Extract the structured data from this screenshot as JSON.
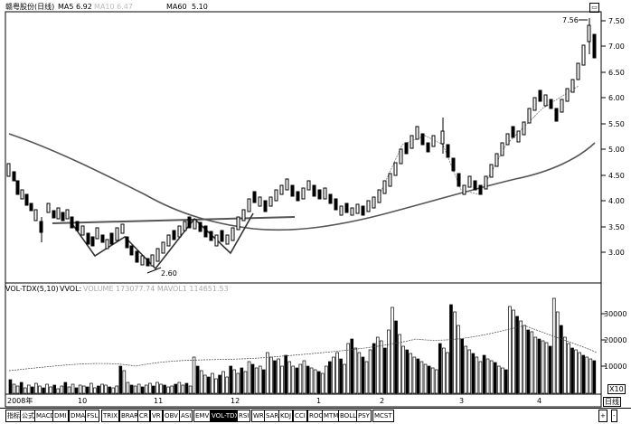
{
  "header": {
    "stock_label": "赣粤股份(日线)",
    "ma5_label": "MA5",
    "ma5_value": "6.92",
    "ma_faded": "MA10 6.47",
    "ma60_label": "MA60",
    "ma60_value": "5.10"
  },
  "price_axis": [
    "7.50",
    "7.00",
    "6.50",
    "6.00",
    "5.50",
    "5.00",
    "4.50",
    "4.00",
    "3.50",
    "3.00"
  ],
  "annotations": {
    "low": "2.60",
    "high": "7.56"
  },
  "volume_header": {
    "indicator": "VOL-TDX(5,10)",
    "vol_label": "VVOL:",
    "rest": "VOLUME 173077.74 MAVOL1 114651.53"
  },
  "volume_axis": [
    "30000",
    "20000",
    "10000"
  ],
  "volume_unit": "X10",
  "date_axis": [
    "2008年",
    "10",
    "11",
    "12",
    "1",
    "2",
    "3",
    "4"
  ],
  "period_label": "日线",
  "tabs": [
    "指标",
    "公式",
    "MACD",
    "DMI",
    "DMA",
    "FSL",
    "TRIX",
    "BRAR",
    "CR",
    "VR",
    "OBV",
    "ASI",
    "EMV",
    "VOL-TDX",
    "RSI",
    "WR",
    "SAR",
    "KDJ",
    "CCI",
    "ROC",
    "MTM",
    "BOLL",
    "PSY",
    "MCST"
  ],
  "nav_buttons": [
    "+",
    "-"
  ],
  "top_right_icon": "minimize-icon",
  "colors": {
    "background": "#ffffff",
    "ink": "#000000",
    "ma60": "#555555",
    "neckline": "#555555"
  }
}
